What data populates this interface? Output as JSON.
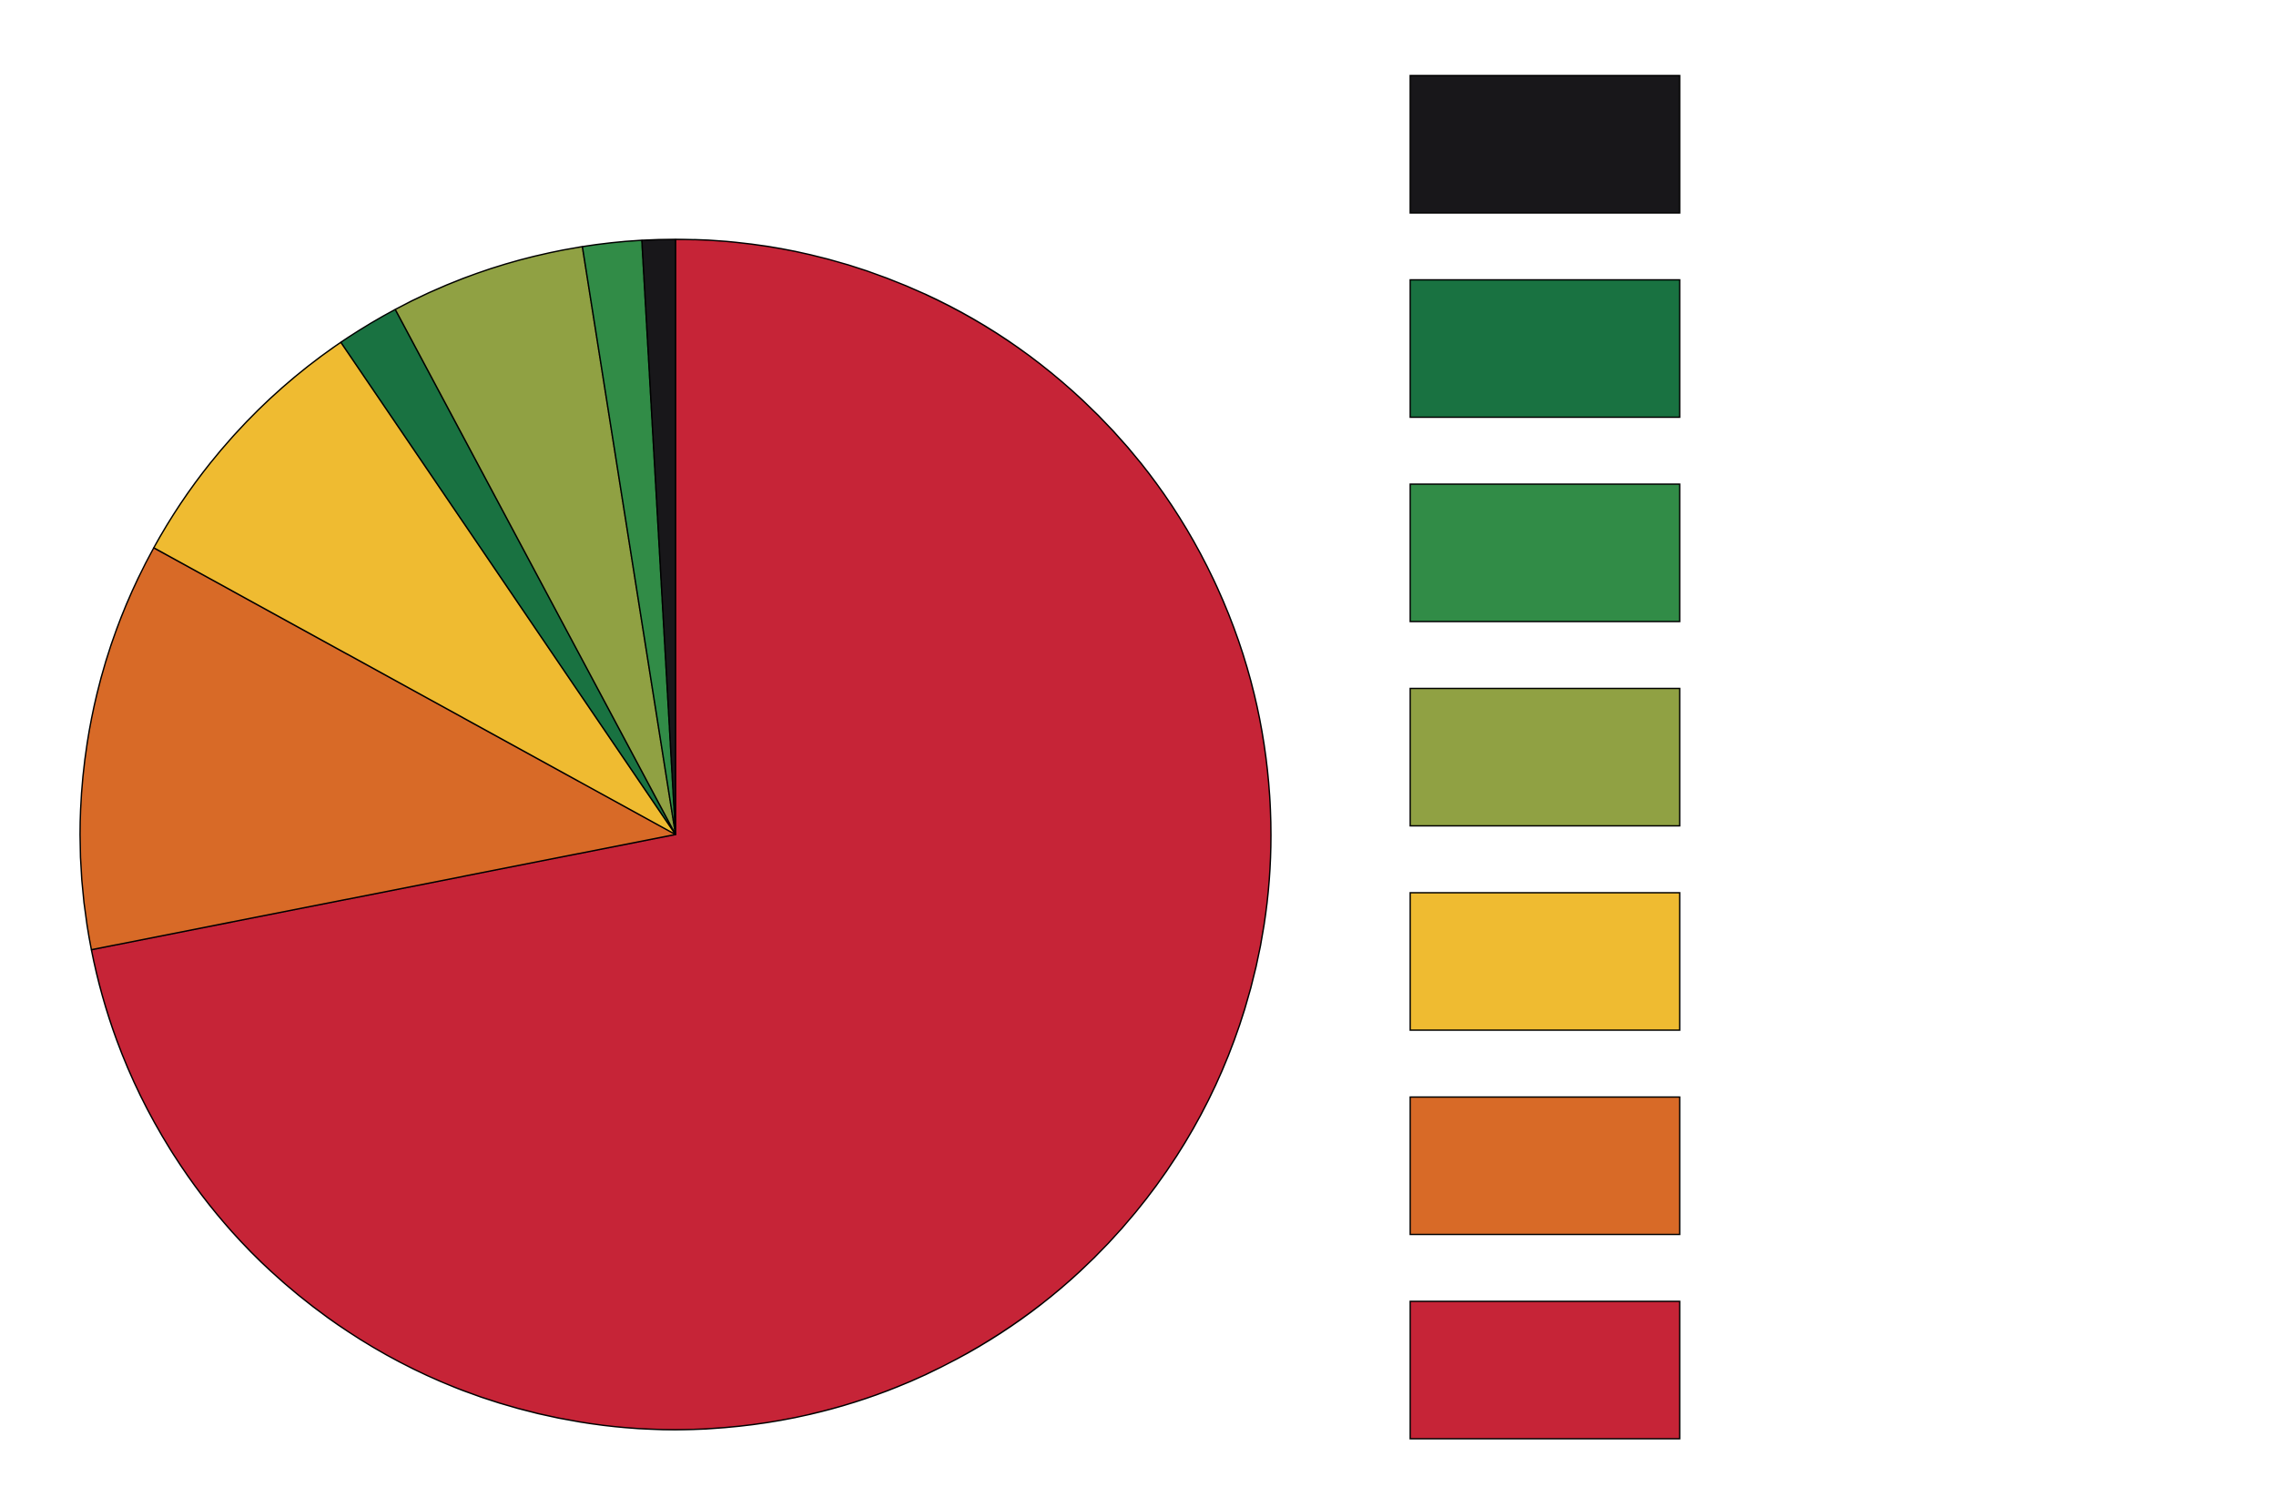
{
  "chart_data": {
    "type": "pie",
    "values": [
      71.9,
      11.1,
      7.5,
      1.7,
      5.3,
      1.6,
      0.9
    ],
    "colors": [
      "#c62437",
      "#d86a27",
      "#efbb31",
      "#197241",
      "#90a143",
      "#318c47",
      "#18171a"
    ],
    "start_angle": 0,
    "direction": "clockwise",
    "legend": {
      "position": "right",
      "colors": [
        "#18171a",
        "#197241",
        "#318c47",
        "#90a143",
        "#efbb31",
        "#d86a27",
        "#c62437"
      ]
    }
  }
}
